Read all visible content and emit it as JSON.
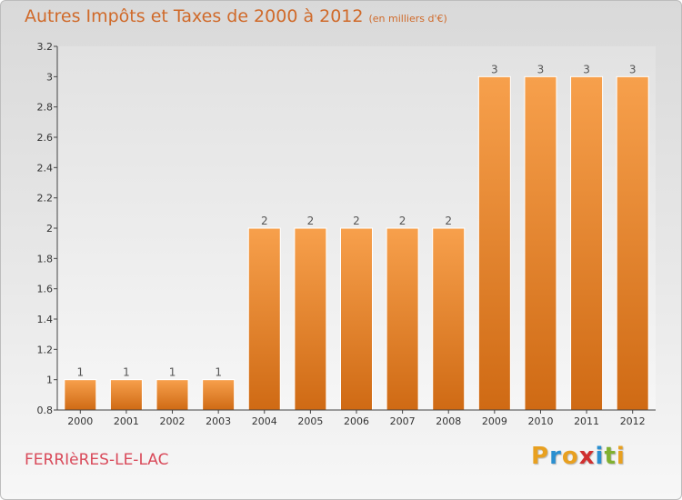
{
  "chart_data": {
    "type": "bar",
    "title": "Autres Impôts et Taxes de 2000 à 2012",
    "subtitle": "(en milliers d'€)",
    "categories": [
      "2000",
      "2001",
      "2002",
      "2003",
      "2004",
      "2005",
      "2006",
      "2007",
      "2008",
      "2009",
      "2010",
      "2011",
      "2012"
    ],
    "values": [
      1,
      1,
      1,
      1,
      2,
      2,
      2,
      2,
      2,
      3,
      3,
      3,
      3
    ],
    "value_labels": [
      "1",
      "1",
      "1",
      "1",
      "2",
      "2",
      "2",
      "2",
      "2",
      "3",
      "3",
      "3",
      "3"
    ],
    "ylim": [
      0.8,
      3.2
    ],
    "yticks": [
      0.8,
      1,
      1.2,
      1.4,
      1.6,
      1.8,
      2,
      2.2,
      2.4,
      2.6,
      2.8,
      3,
      3.2
    ],
    "ytick_labels": [
      "0.8",
      "1",
      "1.2",
      "1.4",
      "1.6",
      "1.8",
      "2",
      "2.2",
      "2.4",
      "2.6",
      "2.8",
      "3",
      "3.2"
    ],
    "xlabel": "",
    "ylabel": "",
    "grid": false,
    "bar_color": "#f0963c"
  },
  "footer": {
    "city": "FERRIèRES-LE-LAC",
    "brand_letters": [
      "P",
      "r",
      "o",
      "x",
      "i",
      "t",
      "i"
    ],
    "brand_colors": [
      "#e8a020",
      "#2a8fd0",
      "#e8a020",
      "#d03030",
      "#2a8fd0",
      "#80b030",
      "#e8a020"
    ]
  }
}
